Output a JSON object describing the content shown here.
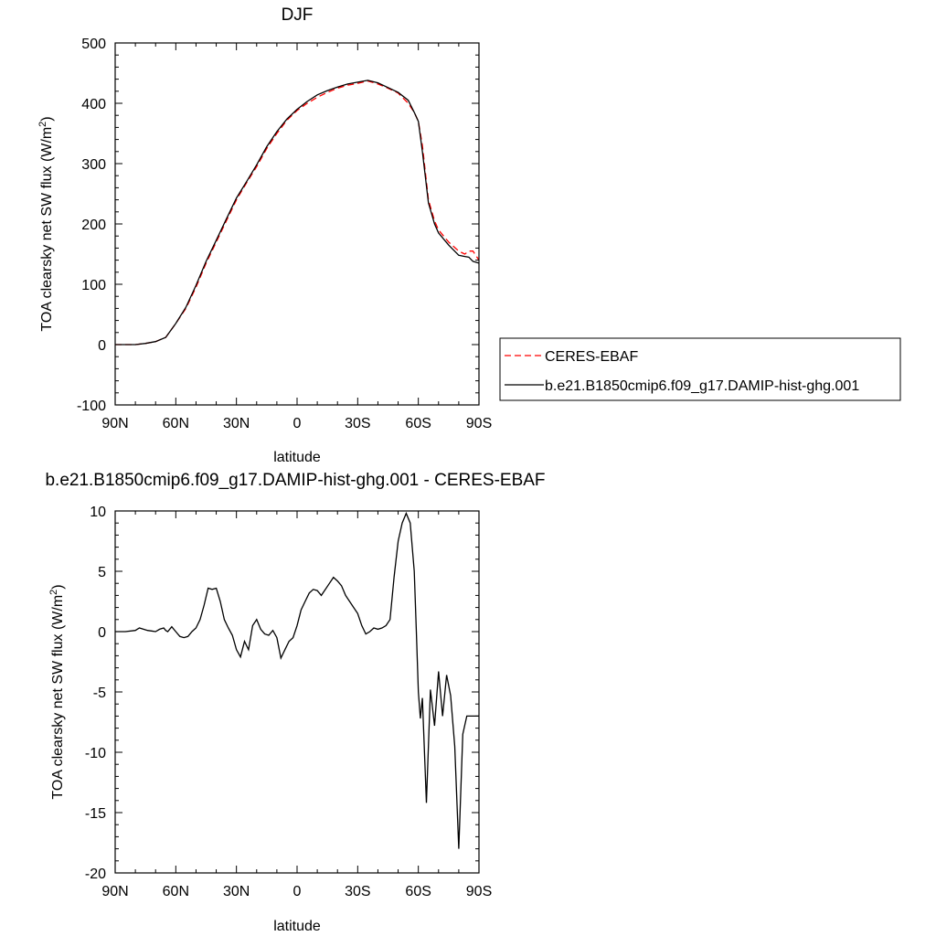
{
  "chart_data": [
    {
      "type": "line",
      "title": "DJF",
      "xlabel": "latitude",
      "ylabel_main": "TOA clearsky net SW flux (W/m",
      "ylabel_sup": "2",
      "ylabel_end": ")",
      "xlim": [
        90,
        -90
      ],
      "ylim": [
        -100,
        500
      ],
      "xticks": [
        {
          "value": 90,
          "label": "90N"
        },
        {
          "value": 60,
          "label": "60N"
        },
        {
          "value": 30,
          "label": "30N"
        },
        {
          "value": 0,
          "label": "0"
        },
        {
          "value": -30,
          "label": "30S"
        },
        {
          "value": -60,
          "label": "60S"
        },
        {
          "value": -90,
          "label": "90S"
        }
      ],
      "yticks": [
        -100,
        0,
        100,
        200,
        300,
        400,
        500
      ],
      "legend": {
        "position": "right"
      },
      "series": [
        {
          "name": "CERES-EBAF",
          "color": "#ff0000",
          "dash": "dashed",
          "x": [
            90,
            85,
            80,
            75,
            70,
            65,
            60,
            55,
            50,
            45,
            40,
            35,
            30,
            25,
            20,
            15,
            10,
            5,
            0,
            -5,
            -10,
            -15,
            -20,
            -25,
            -30,
            -35,
            -40,
            -45,
            -50,
            -55,
            -58,
            -60,
            -62,
            -65,
            -68,
            -70,
            -75,
            -80,
            -83,
            -85,
            -87,
            -90
          ],
          "y": [
            0,
            0,
            0,
            2,
            5,
            12,
            35,
            60,
            95,
            135,
            170,
            205,
            240,
            268,
            295,
            325,
            350,
            372,
            388,
            400,
            410,
            418,
            425,
            430,
            433,
            437,
            432,
            425,
            417,
            400,
            385,
            370,
            330,
            240,
            205,
            190,
            170,
            155,
            150,
            155,
            155,
            140
          ]
        },
        {
          "name": "b.e21.B1850cmip6.f09_g17.DAMIP-hist-ghg.001",
          "color": "#000000",
          "dash": "solid",
          "x": [
            90,
            85,
            80,
            75,
            70,
            65,
            60,
            55,
            50,
            45,
            40,
            35,
            30,
            25,
            20,
            15,
            10,
            5,
            0,
            -5,
            -10,
            -15,
            -20,
            -25,
            -30,
            -35,
            -40,
            -45,
            -50,
            -55,
            -58,
            -60,
            -62,
            -65,
            -68,
            -70,
            -75,
            -80,
            -83,
            -85,
            -87,
            -90
          ],
          "y": [
            0,
            0,
            0,
            2,
            5,
            12,
            35,
            62,
            98,
            138,
            173,
            208,
            243,
            270,
            298,
            328,
            353,
            374,
            390,
            403,
            414,
            421,
            427,
            432,
            435,
            438,
            434,
            426,
            418,
            405,
            385,
            370,
            320,
            235,
            200,
            185,
            165,
            148,
            146,
            145,
            138,
            135
          ]
        }
      ]
    },
    {
      "type": "line",
      "title": "b.e21.B1850cmip6.f09_g17.DAMIP-hist-ghg.001 - CERES-EBAF",
      "xlabel": "latitude",
      "ylabel_main": "TOA clearsky net SW flux (W/m",
      "ylabel_sup": "2",
      "ylabel_end": ")",
      "xlim": [
        90,
        -90
      ],
      "ylim": [
        -20,
        10
      ],
      "xticks": [
        {
          "value": 90,
          "label": "90N"
        },
        {
          "value": 60,
          "label": "60N"
        },
        {
          "value": 30,
          "label": "30N"
        },
        {
          "value": 0,
          "label": "0"
        },
        {
          "value": -30,
          "label": "30S"
        },
        {
          "value": -60,
          "label": "60S"
        },
        {
          "value": -90,
          "label": "90S"
        }
      ],
      "yticks": [
        -20,
        -15,
        -10,
        -5,
        0,
        5,
        10
      ],
      "series": [
        {
          "name": "",
          "color": "#000000",
          "dash": "solid",
          "x": [
            90,
            85,
            80,
            78,
            76,
            74,
            72,
            70,
            68,
            66,
            65,
            64,
            62,
            60,
            58,
            56,
            54,
            52,
            50,
            48,
            46,
            44,
            42,
            40,
            38,
            36,
            34,
            32,
            30,
            28,
            26,
            24,
            22,
            20,
            18,
            16,
            14,
            12,
            10,
            8,
            6,
            4,
            2,
            0,
            -2,
            -4,
            -6,
            -8,
            -10,
            -12,
            -14,
            -16,
            -18,
            -20,
            -22,
            -24,
            -26,
            -28,
            -30,
            -32,
            -34,
            -36,
            -38,
            -40,
            -42,
            -44,
            -46,
            -48,
            -50,
            -52,
            -54,
            -56,
            -58,
            -59,
            -60,
            -61,
            -62,
            -64,
            -66,
            -68,
            -70,
            -72,
            -74,
            -76,
            -78,
            -80,
            -82,
            -84,
            -86,
            -88,
            -90
          ],
          "y": [
            0,
            0,
            0.1,
            0.3,
            0.2,
            0.1,
            0.05,
            0.0,
            0.2,
            0.3,
            0.1,
            0.0,
            0.4,
            0.0,
            -0.4,
            -0.5,
            -0.4,
            0.0,
            0.3,
            1.0,
            2.2,
            3.6,
            3.5,
            3.6,
            2.5,
            1.0,
            0.3,
            -0.3,
            -1.5,
            -2.1,
            -0.8,
            -1.5,
            0.5,
            1.0,
            0.2,
            -0.2,
            -0.3,
            0.1,
            -0.5,
            -2.2,
            -1.5,
            -0.8,
            -0.5,
            0.5,
            1.8,
            2.5,
            3.2,
            3.5,
            3.4,
            3.0,
            3.5,
            4.0,
            4.5,
            4.2,
            3.8,
            3.0,
            2.5,
            2.0,
            1.5,
            0.5,
            -0.2,
            0.0,
            0.3,
            0.2,
            0.3,
            0.5,
            1.0,
            4.5,
            7.5,
            9.0,
            9.8,
            9.0,
            5.0,
            0.0,
            -5.0,
            -7.2,
            -5.5,
            -14.2,
            -4.8,
            -7.8,
            -3.3,
            -7.0,
            -3.6,
            -5.3,
            -9.5,
            -18.0,
            -8.5,
            -7.0,
            -7.0,
            -7.0,
            -7.0
          ]
        }
      ]
    }
  ]
}
